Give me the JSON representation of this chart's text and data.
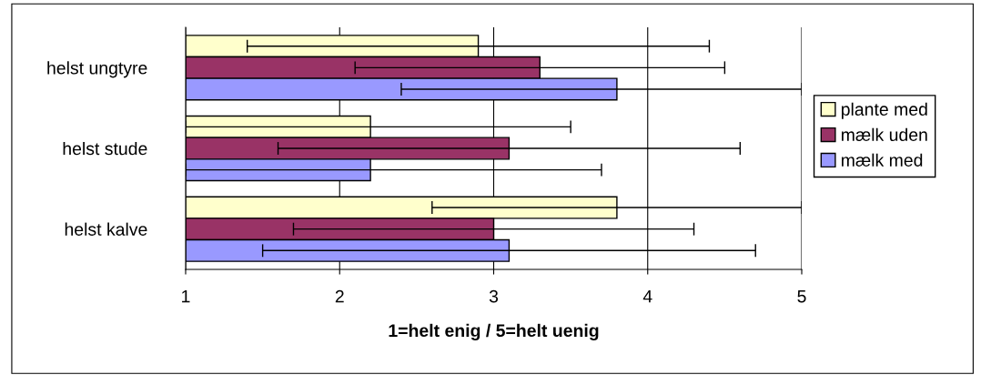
{
  "chart_data": {
    "type": "bar",
    "orientation": "horizontal",
    "xlabel": "1=helt enig / 5=helt uenig",
    "categories": [
      "helst ungtyre",
      "helst stude",
      "helst kalve"
    ],
    "series": [
      {
        "name": "plante med",
        "color": "#ffffcc",
        "values": [
          2.9,
          2.2,
          3.8
        ],
        "errors": [
          [
            1.4,
            4.4
          ],
          [
            1.0,
            3.5
          ],
          [
            2.6,
            5.0
          ]
        ]
      },
      {
        "name": "mælk uden",
        "color": "#993366",
        "values": [
          3.3,
          3.1,
          3.0
        ],
        "errors": [
          [
            2.1,
            4.5
          ],
          [
            1.6,
            4.6
          ],
          [
            1.7,
            4.3
          ]
        ]
      },
      {
        "name": "mælk med",
        "color": "#9999ff",
        "values": [
          3.8,
          2.2,
          3.1
        ],
        "errors": [
          [
            2.4,
            5.0
          ],
          [
            1.0,
            3.7
          ],
          [
            1.5,
            4.7
          ]
        ]
      }
    ],
    "xlim": [
      1,
      5
    ],
    "xticks": [
      1,
      2,
      3,
      4,
      5
    ],
    "grid": "x",
    "legend": "right"
  }
}
